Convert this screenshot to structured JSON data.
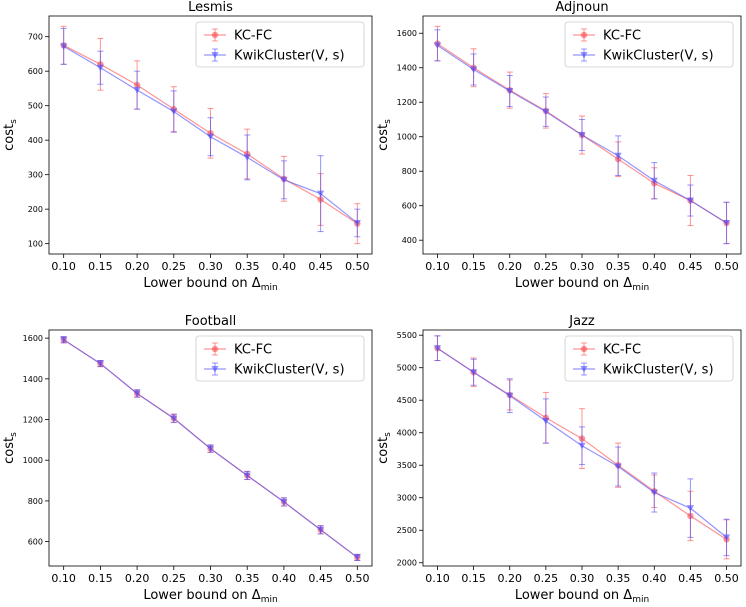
{
  "chart_data": [
    {
      "type": "line",
      "title": "Lesmis",
      "xlabel": "Lower bound on Δ",
      "xlabel_sub": "min",
      "ylabel": "cost",
      "ylabel_sub": "s",
      "xlim": [
        0.08,
        0.52
      ],
      "ylim": [
        70,
        760
      ],
      "xticks": [
        "0.10",
        "0.15",
        "0.20",
        "0.25",
        "0.30",
        "0.35",
        "0.40",
        "0.45",
        "0.50"
      ],
      "yticks": [
        "100",
        "200",
        "300",
        "400",
        "500",
        "600",
        "700"
      ],
      "grid": false,
      "legend_position": "upper right",
      "x": [
        0.1,
        0.15,
        0.2,
        0.25,
        0.3,
        0.35,
        0.4,
        0.45,
        0.5
      ],
      "series": [
        {
          "name": "KC-FC",
          "color": "#ff4d4d",
          "marker": "circle",
          "values": [
            675,
            620,
            560,
            490,
            420,
            360,
            288,
            228,
            158
          ],
          "errors": [
            55,
            75,
            70,
            65,
            72,
            72,
            65,
            75,
            58
          ]
        },
        {
          "name": "KwikCluster(V, s)",
          "name_italic": "V",
          "color": "#4d4dff",
          "marker": "triangle-down",
          "values": [
            672,
            610,
            545,
            483,
            410,
            350,
            285,
            245,
            160
          ],
          "errors": [
            52,
            48,
            55,
            60,
            55,
            65,
            55,
            110,
            40
          ]
        }
      ]
    },
    {
      "type": "line",
      "title": "Adjnoun",
      "xlabel": "Lower bound on Δ",
      "xlabel_sub": "min",
      "ylabel": "cost",
      "ylabel_sub": "s",
      "xlim": [
        0.08,
        0.52
      ],
      "ylim": [
        320,
        1700
      ],
      "xticks": [
        "0.10",
        "0.15",
        "0.20",
        "0.25",
        "0.30",
        "0.35",
        "0.40",
        "0.45",
        "0.50"
      ],
      "yticks": [
        "400",
        "600",
        "800",
        "1000",
        "1200",
        "1400",
        "1600"
      ],
      "grid": false,
      "legend_position": "upper right",
      "x": [
        0.1,
        0.15,
        0.2,
        0.25,
        0.3,
        0.35,
        0.4,
        0.45,
        0.5
      ],
      "series": [
        {
          "name": "KC-FC",
          "color": "#ff4d4d",
          "marker": "circle",
          "values": [
            1540,
            1400,
            1270,
            1150,
            1010,
            870,
            730,
            630,
            500
          ],
          "errors": [
            100,
            110,
            105,
            100,
            110,
            100,
            90,
            145,
            120
          ]
        },
        {
          "name": "KwikCluster(V, s)",
          "name_italic": "V",
          "color": "#4d4dff",
          "marker": "triangle-down",
          "values": [
            1530,
            1390,
            1265,
            1145,
            1010,
            890,
            745,
            630,
            500
          ],
          "errors": [
            90,
            90,
            90,
            85,
            90,
            115,
            105,
            90,
            120
          ]
        }
      ]
    },
    {
      "type": "line",
      "title": "Football",
      "xlabel": "Lower bound on Δ",
      "xlabel_sub": "min",
      "ylabel": "cost",
      "ylabel_sub": "s",
      "xlim": [
        0.08,
        0.52
      ],
      "ylim": [
        480,
        1640
      ],
      "xticks": [
        "0.10",
        "0.15",
        "0.20",
        "0.25",
        "0.30",
        "0.35",
        "0.40",
        "0.45",
        "0.50"
      ],
      "yticks": [
        "600",
        "800",
        "1000",
        "1200",
        "1400",
        "1600"
      ],
      "grid": false,
      "legend_position": "upper right",
      "x": [
        0.1,
        0.15,
        0.2,
        0.25,
        0.3,
        0.35,
        0.4,
        0.45,
        0.5
      ],
      "series": [
        {
          "name": "KC-FC",
          "color": "#ff4d4d",
          "marker": "circle",
          "values": [
            1592,
            1475,
            1328,
            1207,
            1057,
            925,
            795,
            658,
            522
          ],
          "errors": [
            15,
            15,
            18,
            20,
            18,
            20,
            20,
            20,
            15
          ]
        },
        {
          "name": "KwikCluster(V, s)",
          "name_italic": "V",
          "color": "#4d4dff",
          "marker": "triangle-down",
          "values": [
            1592,
            1475,
            1328,
            1205,
            1057,
            925,
            795,
            658,
            522
          ],
          "errors": [
            15,
            15,
            18,
            20,
            18,
            20,
            20,
            20,
            15
          ]
        }
      ]
    },
    {
      "type": "line",
      "title": "Jazz",
      "xlabel": "Lower bound on Δ",
      "xlabel_sub": "min",
      "ylabel": "cost",
      "ylabel_sub": "s",
      "xlim": [
        0.08,
        0.52
      ],
      "ylim": [
        1950,
        5580
      ],
      "xticks": [
        "0.10",
        "0.15",
        "0.20",
        "0.25",
        "0.30",
        "0.35",
        "0.40",
        "0.45",
        "0.50"
      ],
      "yticks": [
        "2000",
        "2500",
        "3000",
        "3500",
        "4000",
        "4500",
        "5000",
        "5500"
      ],
      "grid": false,
      "legend_position": "upper right",
      "x": [
        0.1,
        0.15,
        0.2,
        0.25,
        0.3,
        0.35,
        0.4,
        0.45,
        0.5
      ],
      "series": [
        {
          "name": "KC-FC",
          "color": "#ff4d4d",
          "marker": "circle",
          "values": [
            5300,
            4930,
            4580,
            4230,
            3910,
            3500,
            3100,
            2720,
            2360
          ],
          "errors": [
            190,
            220,
            230,
            390,
            460,
            340,
            250,
            380,
            300
          ]
        },
        {
          "name": "KwikCluster(V, s)",
          "name_italic": "V",
          "color": "#4d4dff",
          "marker": "triangle-down",
          "values": [
            5300,
            4930,
            4570,
            4180,
            3800,
            3480,
            3080,
            2840,
            2390
          ],
          "errors": [
            190,
            200,
            260,
            340,
            290,
            300,
            300,
            450,
            280
          ]
        }
      ]
    }
  ]
}
